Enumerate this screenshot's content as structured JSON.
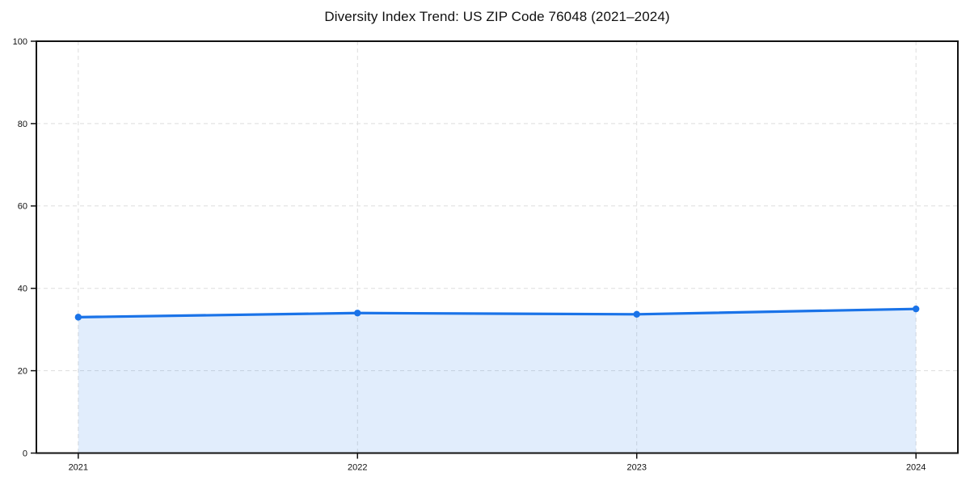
{
  "page": {
    "background_color": "#ffffff"
  },
  "chart_data": {
    "type": "line",
    "title": "Diversity Index Trend: US ZIP Code 76048 (2021–2024)",
    "x": [
      2021,
      2022,
      2023,
      2024
    ],
    "values": [
      33,
      34,
      33.7,
      35
    ],
    "series": [
      {
        "name": "Diversity Index",
        "values": [
          33,
          34,
          33.7,
          35
        ]
      }
    ],
    "xticks": [
      "2021",
      "2022",
      "2023",
      "2024"
    ],
    "yticks": [
      0,
      20,
      40,
      60,
      80,
      100
    ],
    "xlim": [
      2020.85,
      2024.15
    ],
    "ylim": [
      0,
      100
    ],
    "xlabel": "",
    "ylabel": "",
    "grid": true,
    "grid_style": "dashed",
    "legend": false,
    "area_fill": true,
    "marker": "circle",
    "colors": {
      "line": "#1a73e8",
      "marker": "#1a73e8",
      "fill": "rgba(26,115,232,0.13)",
      "grid": "#dddddd",
      "axis": "#111111",
      "text": "#111111",
      "background": "#ffffff"
    }
  }
}
